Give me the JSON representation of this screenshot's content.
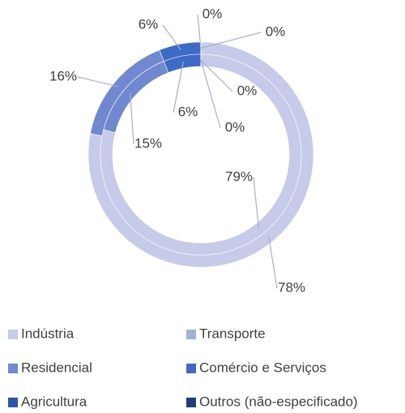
{
  "chart_data": {
    "type": "donut",
    "categories": [
      "Indústria",
      "Transporte",
      "Residencial",
      "Comércio e Serviços",
      "Agricultura",
      "Outros (não-especificado)"
    ],
    "colors": [
      "#c5cbe8",
      "#a3aedb",
      "#7088d0",
      "#3d6ac7",
      "#2b55a8",
      "#1f3f7a"
    ],
    "series": [
      {
        "values": [
          78,
          null,
          16,
          6,
          0,
          0
        ],
        "value_labels": [
          "78%",
          null,
          "16%",
          "6%",
          "0%",
          "0%"
        ]
      },
      {
        "values": [
          79,
          null,
          15,
          6,
          0,
          0
        ],
        "value_labels": [
          "79%",
          null,
          "15%",
          "6%",
          "0%",
          "0%"
        ]
      }
    ],
    "legend": "bottom"
  }
}
